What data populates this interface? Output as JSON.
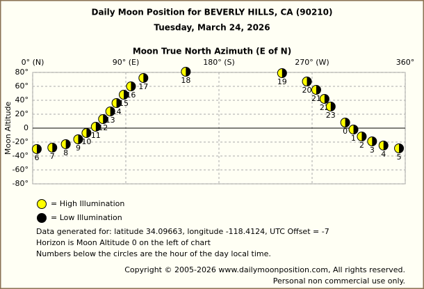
{
  "chart_data": {
    "type": "scatter",
    "title": "Daily Moon Position for BEVERLY HILLS, CA (90210)",
    "subtitle": "Tuesday, March 24, 2026",
    "x_label": "Moon True North Azimuth (E of N)",
    "y_label": "Moon Altitude",
    "xlim": [
      0,
      360
    ],
    "xticks": [
      {
        "value": 0,
        "label": "0° (N)"
      },
      {
        "value": 90,
        "label": "90° (E)"
      },
      {
        "value": 180,
        "label": "180° (S)"
      },
      {
        "value": 270,
        "label": "270° (W)"
      },
      {
        "value": 360,
        "label": "360°"
      }
    ],
    "ylim": [
      -80,
      80
    ],
    "yticks": [
      {
        "value": 80,
        "label": "80°"
      },
      {
        "value": 60,
        "label": "60°"
      },
      {
        "value": 40,
        "label": "40°"
      },
      {
        "value": 20,
        "label": "20°"
      },
      0,
      {
        "value": -20,
        "label": "-20°"
      },
      {
        "value": -40,
        "label": "-40°"
      },
      {
        "value": -60,
        "label": "-60°"
      },
      {
        "value": -80,
        "label": "-80°"
      }
    ],
    "grid": true,
    "x": [
      4,
      19,
      32,
      44,
      52,
      61,
      68,
      75,
      81,
      88,
      95,
      107,
      148,
      241,
      265,
      274,
      282,
      288,
      302,
      310,
      318,
      328,
      339,
      354
    ],
    "values": [
      -30,
      -28,
      -23,
      -16,
      -7,
      2,
      13,
      24,
      36,
      48,
      60,
      72,
      81,
      79,
      67,
      55,
      42,
      31,
      8,
      -2,
      -12,
      -19,
      -25,
      -29
    ],
    "point_labels": [
      "6",
      "7",
      "8",
      "9",
      "10",
      "11",
      "12",
      "13",
      "14",
      "15",
      "16",
      "17",
      "18",
      "19",
      "20",
      "21",
      "22",
      "23",
      "0",
      "1",
      "2",
      "3",
      "4",
      "5"
    ],
    "legend": [
      {
        "name": "= High Illumination",
        "color": "#ffff00"
      },
      {
        "name": "= Low Illumination",
        "color": "#000000"
      }
    ],
    "notes": [
      "Data generated for: latitude 34.09663, longitude -118.4124, UTC Offset = -7",
      "Horizon is Moon Altitude 0 on the left of chart",
      "Numbers below the circles are the hour of the day local time."
    ],
    "copyright": [
      "Copyright © 2005-2026 www.dailymoonposition.com, All rights reserved.",
      "Personal non commercial use only."
    ]
  }
}
